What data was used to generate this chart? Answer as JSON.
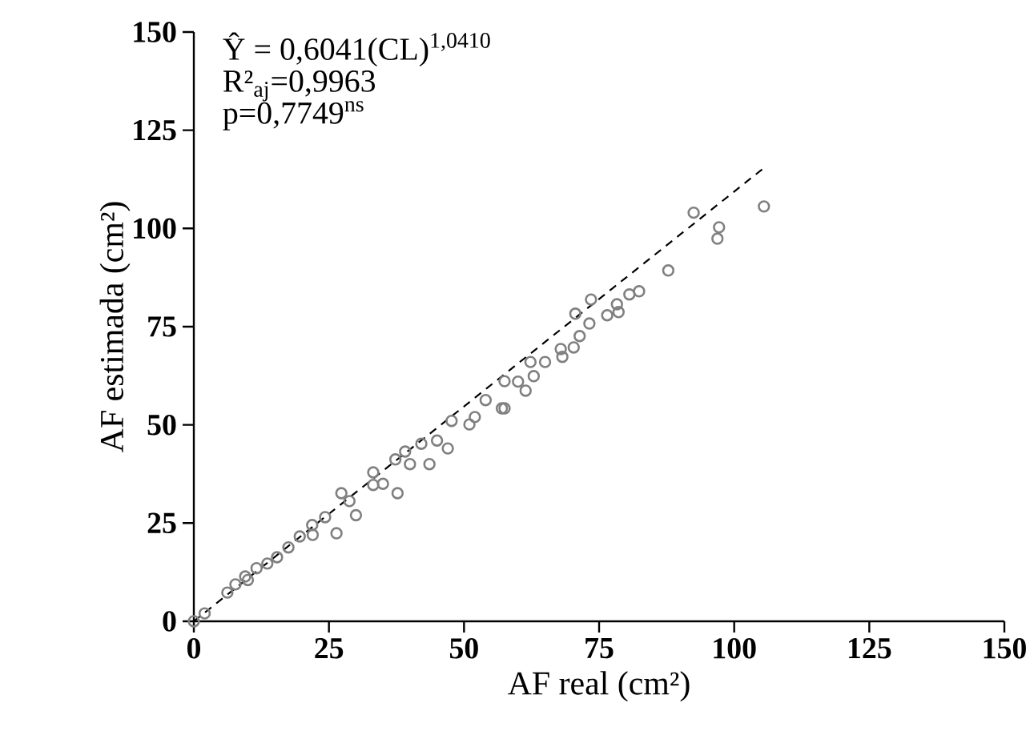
{
  "chart_data": {
    "type": "scatter",
    "xlabel": "AF real (cm²)",
    "ylabel": "AF estimada (cm²)",
    "annotations": [
      "Ŷ = 0,6041(CL)$^{1,0410}$",
      "R²$_{aj}$=0,9963",
      "p=0,7749$^{ns}$"
    ],
    "xlim": [
      0,
      150
    ],
    "ylim": [
      0,
      150
    ],
    "xticks": [
      0,
      25,
      50,
      75,
      100,
      125,
      150
    ],
    "yticks": [
      0,
      25,
      50,
      75,
      100,
      125,
      150
    ],
    "series": [
      {
        "color": "#808080",
        "marker": "circle",
        "x": [
          0,
          2,
          6.2,
          7.7,
          9.5,
          10,
          11.6,
          13.6,
          15.4,
          17.5,
          19.6,
          21.9,
          22,
          24.3,
          26.4,
          27.3,
          28.8,
          30,
          33.2,
          33.2,
          35,
          37.3,
          37.7,
          39.1,
          40,
          42.1,
          43.6,
          45,
          47,
          47.7,
          51,
          52,
          54,
          57,
          57.5,
          57.5,
          60,
          61.4,
          62.3,
          62.9,
          65,
          67.9,
          68.2,
          70.3,
          70.6,
          71.4,
          73.2,
          73.5,
          76.5,
          78.3,
          78.6,
          80.6,
          82.4,
          87.8,
          92.5,
          96.9,
          97.2,
          105.5
        ],
        "values": [
          0,
          2,
          7.3,
          9.4,
          11.4,
          10.5,
          13.5,
          14.7,
          16.3,
          18.8,
          21.6,
          24.5,
          22,
          26.5,
          22.4,
          32.6,
          30.6,
          27,
          37.9,
          34.7,
          35,
          41.2,
          32.6,
          43.2,
          40,
          45.2,
          40,
          46,
          44,
          51,
          50.1,
          52,
          56.3,
          54.2,
          61.1,
          54.2,
          61,
          58.7,
          66,
          62.4,
          66,
          69.3,
          67.3,
          69.7,
          78.3,
          72.6,
          75.8,
          81.9,
          77.9,
          80.7,
          78.7,
          83.2,
          84,
          89.3,
          104,
          97.4,
          100.3,
          105.6
        ]
      },
      {
        "type": "line",
        "color": "#000000",
        "line_style": "dashed",
        "marker": "none",
        "x": [
          0,
          105.5
        ],
        "values": [
          0,
          115.4
        ]
      }
    ]
  }
}
